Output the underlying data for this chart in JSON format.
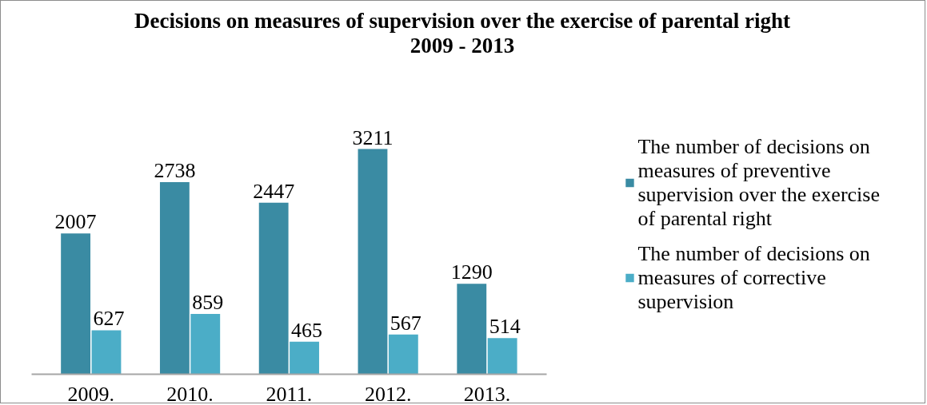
{
  "chart_data": {
    "type": "bar",
    "title": "Decisions on measures of supervision over the exercise of parental right 2009 - 2013",
    "categories": [
      "2009.",
      "2010.",
      "2011.",
      "2012.",
      "2013."
    ],
    "series": [
      {
        "name": "The number of decisions on measures of preventive supervision over the exercise of parental right",
        "color": "#3a8ba3",
        "values": [
          2007,
          2738,
          2447,
          3211,
          1290
        ]
      },
      {
        "name": "The number of decisions on measures of corrective supervision",
        "color": "#4badc7",
        "values": [
          627,
          859,
          465,
          567,
          514
        ]
      }
    ],
    "data_labels": true,
    "legend": "right"
  }
}
